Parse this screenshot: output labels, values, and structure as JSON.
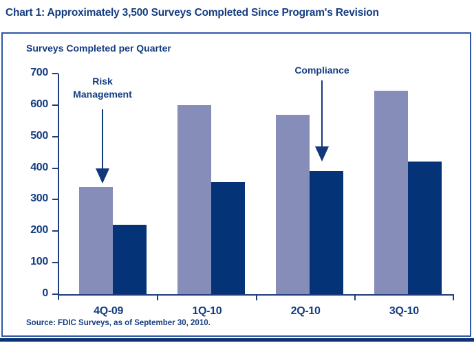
{
  "title": "Chart 1: Approximately 3,500 Surveys Completed Since Program's Revision",
  "panel": {
    "subtitle": "Surveys Completed per Quarter",
    "source": "Source: FDIC Surveys, as of September 30, 2010."
  },
  "annotations": {
    "risk_line1": "Risk",
    "risk_line2": "Management",
    "compliance": "Compliance"
  },
  "colors": {
    "navy_text": "#143C80",
    "axis": "#1F3D7A",
    "risk_bar": "#868DB9",
    "compliance_bar": "#043477",
    "panel_border": "#2E55A6",
    "bottom_rule": "#0C3273"
  },
  "chart_data": {
    "type": "bar",
    "title": "Surveys Completed per Quarter",
    "categories": [
      "4Q-09",
      "1Q-10",
      "2Q-10",
      "3Q-10"
    ],
    "series": [
      {
        "name": "Risk Management",
        "color": "#868DB9",
        "values": [
          340,
          600,
          570,
          645
        ]
      },
      {
        "name": "Compliance",
        "color": "#043477",
        "values": [
          220,
          355,
          390,
          420
        ]
      }
    ],
    "xlabel": "",
    "ylabel": "",
    "ylim": [
      0,
      700
    ],
    "ytick_step": 100,
    "grid": false,
    "legend_position": "none",
    "annotations": [
      {
        "text": "Risk Management",
        "target_category": "4Q-09",
        "target_series": "Risk Management"
      },
      {
        "text": "Compliance",
        "target_category": "2Q-10",
        "target_series": "Compliance"
      }
    ],
    "note": "Source: FDIC Surveys, as of September 30, 2010."
  }
}
